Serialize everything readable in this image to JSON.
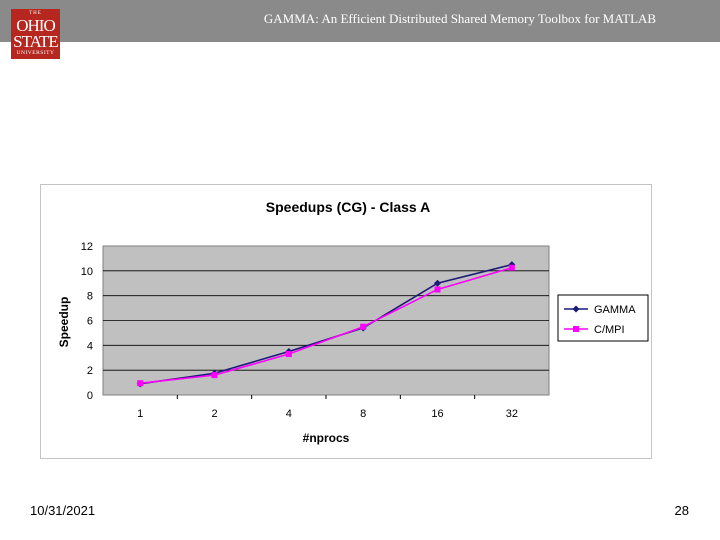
{
  "header": {
    "title": "GAMMA: An Efficient Distributed Shared Memory Toolbox for MATLAB",
    "logo": {
      "line_small": "THE",
      "line1": "OHIO",
      "line2": "STATE",
      "line3": "UNIVERSITY"
    },
    "background_color": "#8a8a8a"
  },
  "footer": {
    "date": "10/31/2021",
    "page_number": "28"
  },
  "chart_data": {
    "type": "line",
    "title": "Speedups (CG) - Class A",
    "xlabel": "#nprocs",
    "ylabel": "Speedup",
    "categories": [
      "1",
      "2",
      "4",
      "8",
      "16",
      "32"
    ],
    "ylim": [
      0,
      12
    ],
    "yticks": [
      "0",
      "2",
      "4",
      "6",
      "8",
      "10",
      "12"
    ],
    "grid": true,
    "plot_background": "#c0c0c0",
    "legend_position": "right",
    "series": [
      {
        "name": "GAMMA",
        "values": [
          0.9,
          1.75,
          3.5,
          5.4,
          9.0,
          10.5
        ],
        "color": "#1a1a7a",
        "marker": "diamond"
      },
      {
        "name": "C/MPI",
        "values": [
          0.95,
          1.6,
          3.3,
          5.5,
          8.5,
          10.25
        ],
        "color": "#ff00ff",
        "marker": "square"
      }
    ]
  }
}
